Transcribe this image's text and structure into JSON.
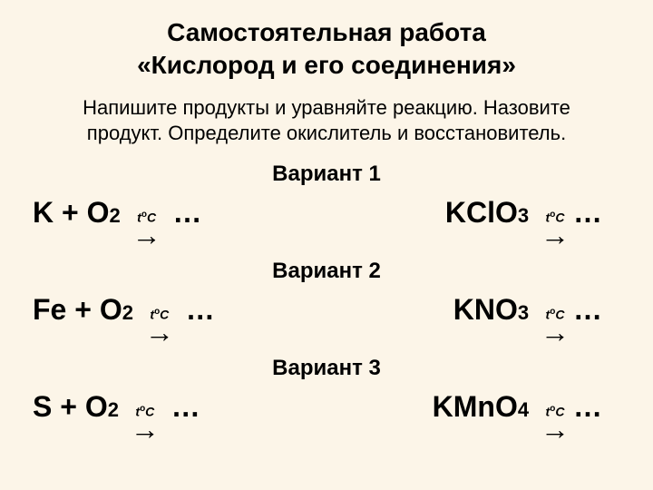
{
  "title_line1": "Самостоятельная работа",
  "title_line2": "«Кислород и его соединения»",
  "subtitle_line1": "Напишите продукты и уравняйте реакцию. Назовите",
  "subtitle_line2": "продукт. Определите окислитель и восстановитель.",
  "temp_annotation": "tоС",
  "arrow": "→",
  "dots": "…",
  "variants": [
    {
      "label": "Вариант 1",
      "left_pre": "K + O",
      "left_sub": "2",
      "right_pre": "KClO",
      "right_sub": "3"
    },
    {
      "label": "Вариант 2",
      "left_pre": "Fe + O",
      "left_sub": "2",
      "right_pre": "KNO",
      "right_sub": "3"
    },
    {
      "label": "Вариант 3",
      "left_pre": "S + O",
      "left_sub": "2",
      "right_pre": "KMnO",
      "right_sub": "4"
    }
  ],
  "colors": {
    "background": "#fcf5e8",
    "text": "#000000"
  },
  "typography": {
    "title_fontsize": 28,
    "subtitle_fontsize": 22,
    "variant_label_fontsize": 24,
    "reaction_fontsize": 32,
    "sub_fontsize": 22,
    "temp_fontsize": 14
  }
}
